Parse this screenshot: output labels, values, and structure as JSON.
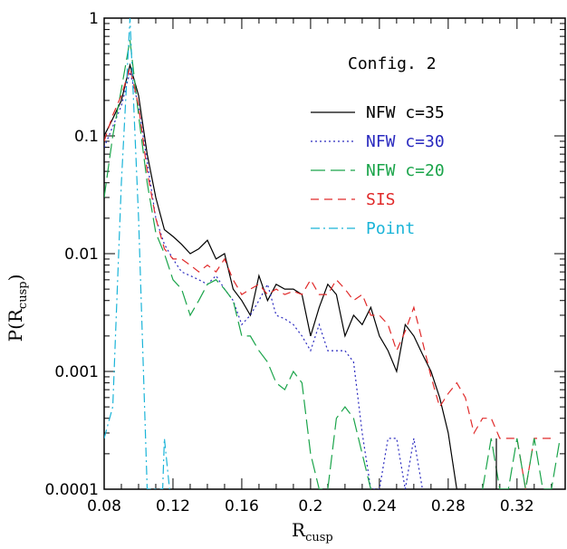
{
  "chart_data": {
    "type": "line",
    "annotation": "Config. 2",
    "xlabel": {
      "main": "R",
      "sub": "cusp"
    },
    "ylabel": {
      "main": "P(R",
      "sub": "cusp",
      "close": ")"
    },
    "xlim": [
      0.08,
      0.348
    ],
    "ylim": [
      0.0001,
      1
    ],
    "yscale": "log",
    "x_ticks": [
      0.08,
      0.12,
      0.16,
      0.2,
      0.24,
      0.28,
      0.32
    ],
    "x_tick_labels": [
      "0.08",
      "0.12",
      "0.16",
      "0.2",
      "0.24",
      "0.28",
      "0.32"
    ],
    "y_ticks": [
      0.0001,
      0.001,
      0.01,
      0.1,
      1
    ],
    "y_tick_labels": [
      "0.0001",
      "0.001",
      "0.01",
      "0.1",
      "1"
    ],
    "legend_position": "right",
    "series": [
      {
        "name": "NFW c=35",
        "color": "#000000",
        "dash": "",
        "x": [
          0.08,
          0.085,
          0.09,
          0.095,
          0.1,
          0.105,
          0.11,
          0.115,
          0.12,
          0.125,
          0.13,
          0.135,
          0.14,
          0.145,
          0.15,
          0.155,
          0.16,
          0.165,
          0.17,
          0.175,
          0.18,
          0.185,
          0.19,
          0.195,
          0.2,
          0.205,
          0.21,
          0.215,
          0.22,
          0.225,
          0.23,
          0.235,
          0.24,
          0.245,
          0.25,
          0.255,
          0.26,
          0.265,
          0.27,
          0.275,
          0.28,
          0.285,
          0.29
        ],
        "y": [
          0.1,
          0.14,
          0.2,
          0.4,
          0.22,
          0.07,
          0.03,
          0.016,
          0.014,
          0.012,
          0.01,
          0.011,
          0.013,
          0.009,
          0.01,
          0.005,
          0.004,
          0.003,
          0.0065,
          0.004,
          0.0055,
          0.005,
          0.005,
          0.0045,
          0.002,
          0.0035,
          0.0055,
          0.0045,
          0.002,
          0.003,
          0.0025,
          0.0035,
          0.002,
          0.0015,
          0.001,
          0.0025,
          0.002,
          0.0014,
          0.001,
          0.0006,
          0.0003,
          0.0001,
          0.0001
        ]
      },
      {
        "name": "NFW c=30",
        "color": "#2a2abf",
        "dash": "2,3",
        "x": [
          0.08,
          0.085,
          0.09,
          0.095,
          0.1,
          0.105,
          0.11,
          0.115,
          0.12,
          0.125,
          0.13,
          0.135,
          0.14,
          0.145,
          0.15,
          0.155,
          0.16,
          0.165,
          0.17,
          0.175,
          0.18,
          0.185,
          0.19,
          0.195,
          0.2,
          0.205,
          0.21,
          0.215,
          0.22,
          0.225,
          0.23,
          0.235,
          0.24,
          0.245,
          0.25,
          0.255,
          0.26,
          0.265
        ],
        "y": [
          0.08,
          0.12,
          0.18,
          0.35,
          0.18,
          0.06,
          0.02,
          0.012,
          0.009,
          0.007,
          0.0065,
          0.006,
          0.0055,
          0.0065,
          0.005,
          0.004,
          0.0025,
          0.003,
          0.004,
          0.0055,
          0.003,
          0.0028,
          0.0025,
          0.002,
          0.0015,
          0.0025,
          0.0015,
          0.0015,
          0.0015,
          0.0012,
          0.0003,
          0.0001,
          0.0001,
          0.00027,
          0.00027,
          0.0001,
          0.00027,
          0.0001
        ]
      },
      {
        "name": "NFW c=20",
        "color": "#1aa44a",
        "dash": "16,6",
        "x": [
          0.08,
          0.085,
          0.09,
          0.095,
          0.1,
          0.105,
          0.11,
          0.115,
          0.12,
          0.125,
          0.13,
          0.135,
          0.14,
          0.145,
          0.15,
          0.155,
          0.16,
          0.165,
          0.17,
          0.175,
          0.18,
          0.185,
          0.19,
          0.195,
          0.2,
          0.205,
          0.21,
          0.215,
          0.22,
          0.225,
          0.23,
          0.235
        ],
        "y": [
          0.03,
          0.1,
          0.25,
          0.65,
          0.15,
          0.04,
          0.015,
          0.01,
          0.006,
          0.005,
          0.003,
          0.004,
          0.0055,
          0.006,
          0.005,
          0.004,
          0.002,
          0.002,
          0.0015,
          0.0012,
          0.0008,
          0.0007,
          0.001,
          0.0008,
          0.0002,
          0.0001,
          0.0001,
          0.0004,
          0.0005,
          0.0004,
          0.0002,
          0.0001
        ]
      },
      {
        "name": "SIS",
        "color": "#e02a2a",
        "dash": "9,6",
        "x": [
          0.08,
          0.085,
          0.09,
          0.095,
          0.1,
          0.105,
          0.11,
          0.115,
          0.12,
          0.125,
          0.13,
          0.135,
          0.14,
          0.145,
          0.15,
          0.155,
          0.16,
          0.165,
          0.17,
          0.175,
          0.18,
          0.185,
          0.19,
          0.195,
          0.2,
          0.205,
          0.21,
          0.215,
          0.22,
          0.225,
          0.23,
          0.235,
          0.24,
          0.245,
          0.25,
          0.255,
          0.26,
          0.265,
          0.27,
          0.275,
          0.28,
          0.285,
          0.29,
          0.295,
          0.3,
          0.305,
          0.31,
          0.315,
          0.32,
          0.325,
          0.33,
          0.335,
          0.34
        ],
        "y": [
          0.09,
          0.15,
          0.22,
          0.38,
          0.18,
          0.05,
          0.02,
          0.011,
          0.009,
          0.009,
          0.008,
          0.007,
          0.008,
          0.007,
          0.009,
          0.006,
          0.0045,
          0.005,
          0.0055,
          0.0045,
          0.005,
          0.0045,
          0.0048,
          0.0045,
          0.006,
          0.0045,
          0.0045,
          0.006,
          0.005,
          0.004,
          0.0045,
          0.003,
          0.003,
          0.0025,
          0.0015,
          0.0022,
          0.0035,
          0.0018,
          0.0009,
          0.0005,
          0.00065,
          0.0008,
          0.0006,
          0.0003,
          0.0004,
          0.0004,
          0.00027,
          0.00027,
          0.00027,
          0.0001,
          0.00027,
          0.00027,
          0.00027
        ]
      },
      {
        "name": "Point",
        "color": "#1ab4d8",
        "dash": "10,4,2,4",
        "x": [
          0.08,
          0.085,
          0.09,
          0.095,
          0.1,
          0.105,
          0.11,
          0.114,
          0.115,
          0.118
        ],
        "y": [
          0.00027,
          0.0005,
          0.04,
          1.0,
          0.02,
          0.0001,
          0.0001,
          0.0001,
          0.00027,
          0.0001
        ]
      }
    ],
    "tail_series": [
      {
        "name": "",
        "color": "#1aa44a",
        "dash": "16,6",
        "x": [
          0.3,
          0.305,
          0.31,
          0.315,
          0.32,
          0.325,
          0.33,
          0.335,
          0.34,
          0.345
        ],
        "y": [
          0.0001,
          0.00027,
          0.0001,
          0.0001,
          0.00027,
          0.0001,
          0.00027,
          0.0001,
          0.0001,
          0.00027
        ]
      },
      {
        "name": "",
        "color": "#000000",
        "dash": "",
        "x": [
          0.308,
          0.308
        ],
        "y": [
          0.0001,
          0.00027
        ]
      }
    ]
  }
}
